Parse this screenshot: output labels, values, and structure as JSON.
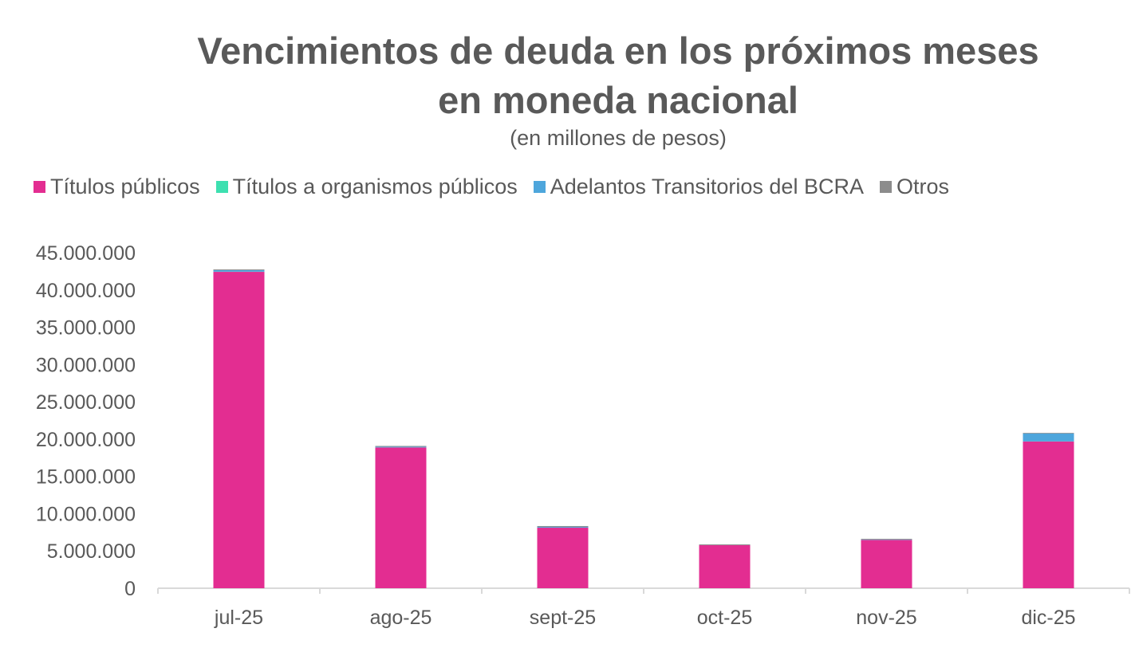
{
  "chart_data": {
    "type": "bar",
    "stacked": true,
    "title_line1": "Vencimientos de deuda en los próximos meses",
    "title_line2": "en moneda nacional",
    "subtitle": "(en millones de pesos)",
    "categories": [
      "jul-25",
      "ago-25",
      "sept-25",
      "oct-25",
      "nov-25",
      "dic-25"
    ],
    "series": [
      {
        "name": "Títulos públicos",
        "color": "#E32D91",
        "values": [
          42430000,
          18870000,
          8120000,
          5770000,
          6470000,
          19670000
        ]
      },
      {
        "name": "Títulos a organismos públicos",
        "color": "#3DE0B0",
        "values": [
          20000,
          10000,
          10000,
          10000,
          10000,
          20000
        ]
      },
      {
        "name": "Adelantos Transitorios del BCRA",
        "color": "#4EA6DC",
        "values": [
          200000,
          100000,
          100000,
          0,
          50000,
          1070000
        ]
      },
      {
        "name": "Otros",
        "color": "#8C8C8C",
        "values": [
          100000,
          100000,
          110000,
          100000,
          100000,
          80000
        ]
      }
    ],
    "yticks": [
      "0",
      "5.000.000",
      "10.000.000",
      "15.000.000",
      "20.000.000",
      "25.000.000",
      "30.000.000",
      "35.000.000",
      "40.000.000",
      "45.000.000"
    ],
    "ylim": [
      0,
      45000000
    ],
    "legend_position": "top",
    "grid": false
  }
}
